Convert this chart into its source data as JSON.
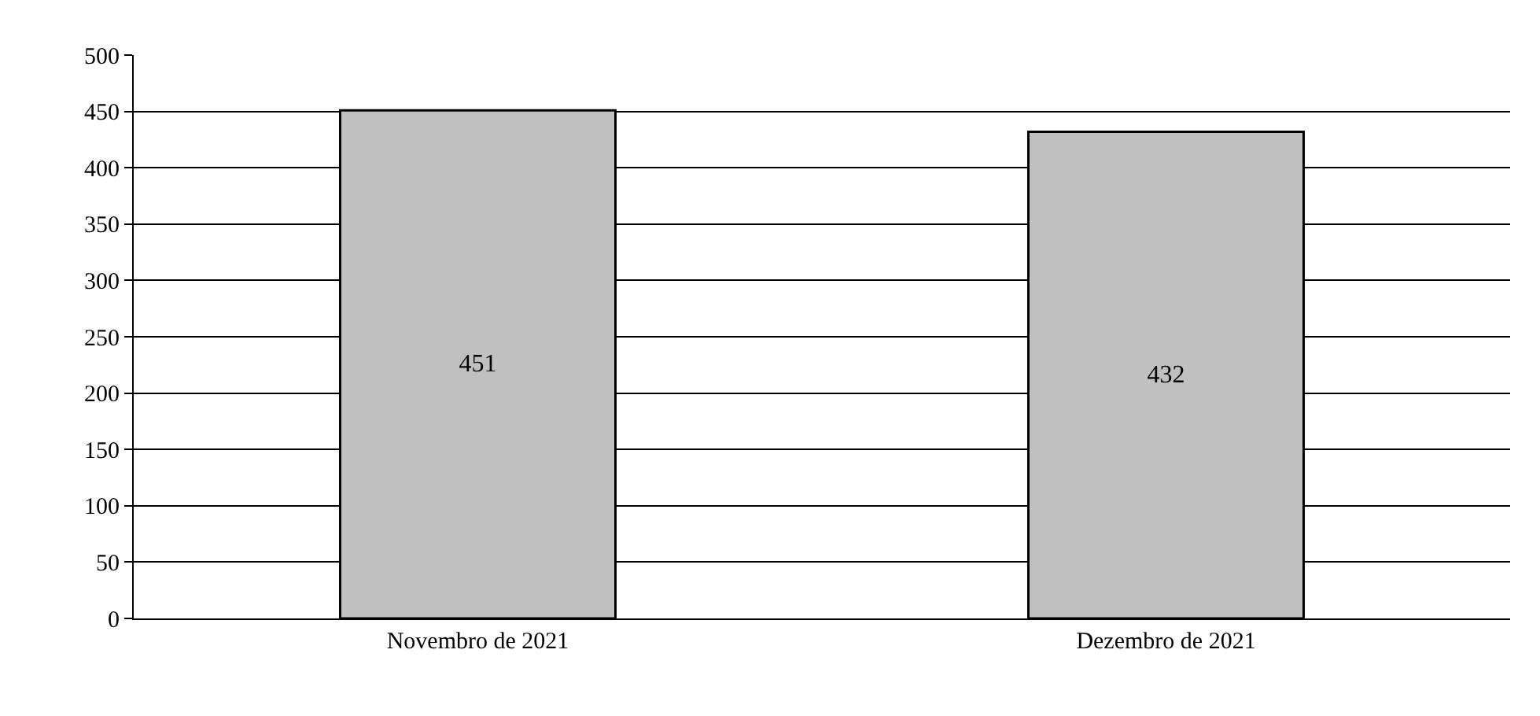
{
  "chart_data": {
    "type": "bar",
    "categories": [
      "Novembro de 2021",
      "Dezembro de 2021"
    ],
    "values": [
      451,
      432
    ],
    "color": "#c0c0c0",
    "ylim": [
      0,
      500
    ],
    "yticks": [
      0,
      50,
      100,
      150,
      200,
      250,
      300,
      350,
      400,
      450,
      500
    ],
    "grid": "y",
    "data_labels": true
  }
}
